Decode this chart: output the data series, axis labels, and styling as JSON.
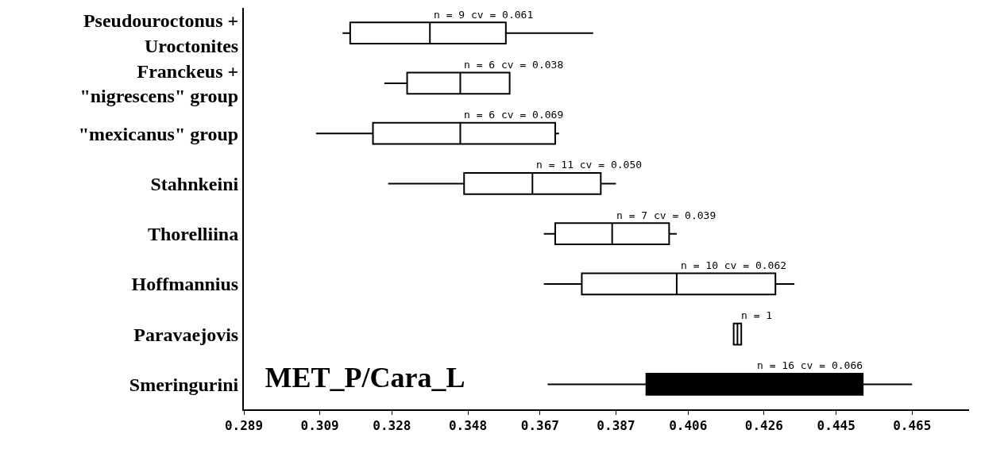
{
  "chart_data": {
    "type": "box",
    "orientation": "horizontal",
    "title": "MET_P/Cara_L",
    "categories": [
      "Pseudouroctonus +\nUroctonites",
      "Franckeus +\n\"nigrescens\" group",
      "\"mexicanus\" group",
      "Stahnkeini",
      "Thorelliina",
      "Hoffmannius",
      "Paravaejovis",
      "Smeringurini"
    ],
    "boxes": [
      {
        "low": 0.315,
        "q1": 0.317,
        "median": 0.338,
        "q3": 0.358,
        "high": 0.381
      },
      {
        "low": 0.326,
        "q1": 0.332,
        "median": 0.346,
        "q3": 0.359,
        "high": 0.359
      },
      {
        "low": 0.308,
        "q1": 0.323,
        "median": 0.346,
        "q3": 0.371,
        "high": 0.372
      },
      {
        "low": 0.327,
        "q1": 0.347,
        "median": 0.365,
        "q3": 0.383,
        "high": 0.387
      },
      {
        "low": 0.368,
        "q1": 0.371,
        "median": 0.386,
        "q3": 0.401,
        "high": 0.403
      },
      {
        "low": 0.368,
        "q1": 0.378,
        "median": 0.403,
        "q3": 0.429,
        "high": 0.434
      },
      {
        "low": 0.418,
        "q1": 0.418,
        "median": 0.419,
        "q3": 0.42,
        "high": 0.42
      },
      {
        "low": 0.369,
        "q1": 0.395,
        "median": 0.423,
        "q3": 0.452,
        "high": 0.465
      }
    ],
    "colors": [
      "#ffffff",
      "#ffffff",
      "#ffffff",
      "#ffffff",
      "#ffffff",
      "#ffffff",
      "#ffffff",
      "#000000"
    ],
    "annotations": [
      {
        "text": "n = 9 cv = 0.061",
        "x": 0.338,
        "y": "Pseudouroctonus +\nUroctonites"
      },
      {
        "text": "n = 6 cv = 0.038",
        "x": 0.346,
        "y": "Franckeus +\n\"nigrescens\" group"
      },
      {
        "text": "n = 6 cv = 0.069",
        "x": 0.346,
        "y": "\"mexicanus\" group"
      },
      {
        "text": "n = 11 cv = 0.050",
        "x": 0.365,
        "y": "Stahnkeini"
      },
      {
        "text": "n = 7 cv = 0.039",
        "x": 0.386,
        "y": "Thorelliina"
      },
      {
        "text": "n = 10 cv = 0.062",
        "x": 0.403,
        "y": "Hoffmannius"
      },
      {
        "text": "n = 1",
        "x": 0.419,
        "y": "Paravaejovis"
      },
      {
        "text": "n = 16 cv = 0.066",
        "x": 0.423,
        "y": "Smeringurini"
      }
    ],
    "xlim": [
      0.289,
      0.48
    ],
    "xticks": [
      0.289,
      0.309,
      0.328,
      0.348,
      0.367,
      0.387,
      0.406,
      0.426,
      0.445,
      0.465
    ]
  }
}
